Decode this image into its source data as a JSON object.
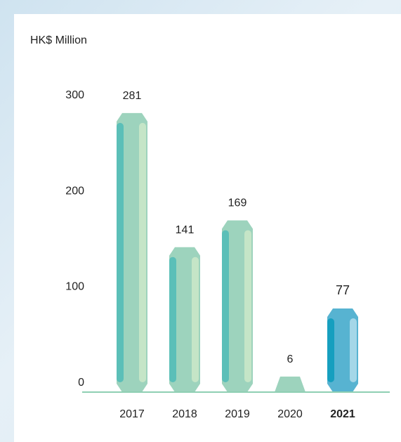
{
  "chart_data": {
    "type": "bar",
    "title": "",
    "xlabel": "",
    "ylabel": "HK$ Million",
    "ylim": [
      0,
      300
    ],
    "yticks": [
      0,
      100,
      200,
      300
    ],
    "categories": [
      "2017",
      "2018",
      "2019",
      "2020",
      "2021"
    ],
    "values": [
      281,
      141,
      169,
      6,
      77
    ],
    "value_labels": [
      "281",
      "141",
      "169",
      "6",
      "77"
    ],
    "highlight_category": "2021",
    "grid": false,
    "colors": {
      "bar": "#9dd3bd",
      "bar_left_stripe": "#5bbfb8",
      "bar_right_stripe": "#c5e5c7",
      "highlight_bar": "#57b3d1",
      "highlight_left_stripe": "#169fbf",
      "highlight_right_stripe": "#a4d7e8",
      "baseline": "#8fcfb3",
      "text": "#222222"
    }
  }
}
